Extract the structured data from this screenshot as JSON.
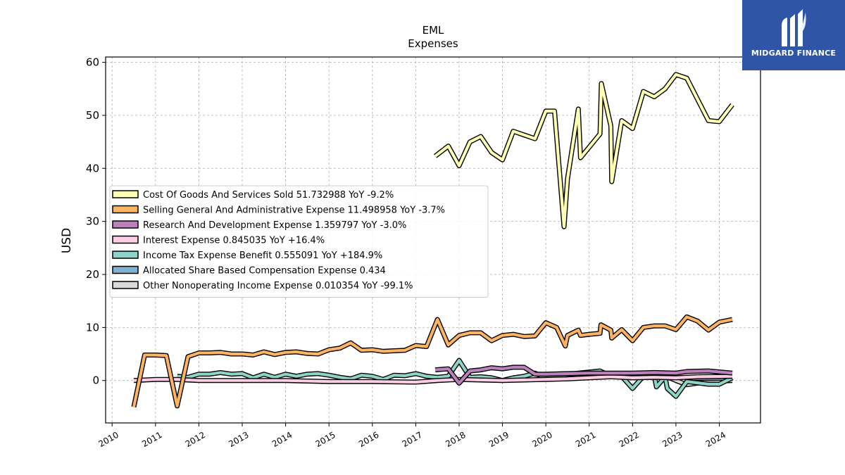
{
  "brand": {
    "name": "MIDGARD FINANCE",
    "bg": "#2f56a6"
  },
  "chart_data": {
    "type": "line",
    "title": "EML",
    "subtitle": "Expenses",
    "ylabel": "USD",
    "xlabel": "",
    "ylim": [
      -8,
      61
    ],
    "xlim": [
      2009.85,
      2024.95
    ],
    "yticks": [
      0,
      10,
      20,
      30,
      40,
      50,
      60
    ],
    "xticks": [
      2010,
      2011,
      2012,
      2013,
      2014,
      2015,
      2016,
      2017,
      2018,
      2019,
      2020,
      2021,
      2022,
      2023,
      2024
    ],
    "grid": true,
    "legend_position": "center-left",
    "series": [
      {
        "name": "Cost Of Goods And Services Sold  51.732988 YoY -9.2%",
        "color": "#ffffb3",
        "points": [
          [
            2017.45,
            42.3
          ],
          [
            2017.75,
            44.2
          ],
          [
            2018.0,
            40.5
          ],
          [
            2018.25,
            45.0
          ],
          [
            2018.5,
            46.0
          ],
          [
            2018.75,
            43.0
          ],
          [
            2019.0,
            41.6
          ],
          [
            2019.25,
            47.0
          ],
          [
            2019.5,
            46.3
          ],
          [
            2019.75,
            45.6
          ],
          [
            2020.0,
            50.8
          ],
          [
            2020.2,
            50.8
          ],
          [
            2020.42,
            29.0
          ],
          [
            2020.5,
            38.0
          ],
          [
            2020.75,
            51.2
          ],
          [
            2020.8,
            42.0
          ],
          [
            2021.25,
            46.5
          ],
          [
            2021.28,
            56.0
          ],
          [
            2021.5,
            48.0
          ],
          [
            2021.52,
            37.5
          ],
          [
            2021.75,
            49.0
          ],
          [
            2022.0,
            47.5
          ],
          [
            2022.25,
            54.5
          ],
          [
            2022.5,
            53.5
          ],
          [
            2022.75,
            55.0
          ],
          [
            2023.0,
            57.7
          ],
          [
            2023.25,
            57.0
          ],
          [
            2023.5,
            53.0
          ],
          [
            2023.75,
            49.0
          ],
          [
            2024.0,
            48.8
          ],
          [
            2024.3,
            52.0
          ]
        ]
      },
      {
        "name": "Selling General And Administrative Expense  11.498958 YoY -3.7%",
        "color": "#fdb462",
        "points": [
          [
            2010.5,
            -5.0
          ],
          [
            2010.75,
            4.8
          ],
          [
            2011.0,
            4.8
          ],
          [
            2011.25,
            4.7
          ],
          [
            2011.5,
            -4.8
          ],
          [
            2011.75,
            4.5
          ],
          [
            2012.0,
            5.2
          ],
          [
            2012.25,
            5.2
          ],
          [
            2012.5,
            5.3
          ],
          [
            2012.75,
            5.0
          ],
          [
            2013.0,
            5.0
          ],
          [
            2013.25,
            4.8
          ],
          [
            2013.5,
            5.4
          ],
          [
            2013.75,
            4.9
          ],
          [
            2014.0,
            5.3
          ],
          [
            2014.25,
            5.4
          ],
          [
            2014.5,
            5.1
          ],
          [
            2014.75,
            5.0
          ],
          [
            2015.0,
            5.8
          ],
          [
            2015.25,
            6.1
          ],
          [
            2015.5,
            7.1
          ],
          [
            2015.75,
            5.7
          ],
          [
            2016.0,
            5.8
          ],
          [
            2016.25,
            5.5
          ],
          [
            2016.5,
            5.6
          ],
          [
            2016.75,
            5.7
          ],
          [
            2017.0,
            6.6
          ],
          [
            2017.25,
            6.4
          ],
          [
            2017.5,
            11.5
          ],
          [
            2017.75,
            6.7
          ],
          [
            2018.0,
            8.5
          ],
          [
            2018.25,
            9.0
          ],
          [
            2018.5,
            9.0
          ],
          [
            2018.75,
            7.5
          ],
          [
            2019.0,
            8.5
          ],
          [
            2019.25,
            8.7
          ],
          [
            2019.5,
            8.3
          ],
          [
            2019.75,
            8.4
          ],
          [
            2020.0,
            10.9
          ],
          [
            2020.25,
            10.0
          ],
          [
            2020.45,
            6.5
          ],
          [
            2020.5,
            8.5
          ],
          [
            2020.75,
            9.5
          ],
          [
            2020.8,
            8.5
          ],
          [
            2021.0,
            8.7
          ],
          [
            2021.25,
            8.9
          ],
          [
            2021.27,
            10.5
          ],
          [
            2021.5,
            9.5
          ],
          [
            2021.52,
            8.0
          ],
          [
            2021.75,
            9.6
          ],
          [
            2022.0,
            7.5
          ],
          [
            2022.25,
            10.0
          ],
          [
            2022.5,
            10.3
          ],
          [
            2022.75,
            10.3
          ],
          [
            2023.0,
            9.6
          ],
          [
            2023.25,
            12.0
          ],
          [
            2023.5,
            11.2
          ],
          [
            2023.75,
            9.5
          ],
          [
            2024.0,
            11.0
          ],
          [
            2024.3,
            11.5
          ]
        ]
      },
      {
        "name": "Research And Development Expense  1.359797 YoY -3.0%",
        "color": "#bc80bd",
        "points": [
          [
            2017.45,
            2.0
          ],
          [
            2017.75,
            2.2
          ],
          [
            2018.0,
            -0.5
          ],
          [
            2018.25,
            1.8
          ],
          [
            2018.5,
            2.0
          ],
          [
            2018.75,
            2.4
          ],
          [
            2019.0,
            2.2
          ],
          [
            2019.25,
            2.5
          ],
          [
            2019.5,
            2.5
          ],
          [
            2019.75,
            1.2
          ],
          [
            2020.0,
            1.2
          ],
          [
            2020.5,
            1.3
          ],
          [
            2021.0,
            1.4
          ],
          [
            2021.5,
            1.4
          ],
          [
            2022.0,
            1.4
          ],
          [
            2022.5,
            1.5
          ],
          [
            2023.0,
            1.4
          ],
          [
            2023.25,
            1.7
          ],
          [
            2023.75,
            1.8
          ],
          [
            2024.3,
            1.4
          ]
        ]
      },
      {
        "name": "Interest Expense  0.845035 YoY +16.4%",
        "color": "#fccde5",
        "points": [
          [
            2010.5,
            0.0
          ],
          [
            2011.0,
            0.2
          ],
          [
            2011.5,
            0.2
          ],
          [
            2012.0,
            0.0
          ],
          [
            2013.0,
            0.0
          ],
          [
            2014.0,
            0.0
          ],
          [
            2015.0,
            -0.2
          ],
          [
            2016.0,
            -0.2
          ],
          [
            2017.0,
            -0.3
          ],
          [
            2017.5,
            0.0
          ],
          [
            2018.0,
            0.2
          ],
          [
            2019.0,
            0.0
          ],
          [
            2020.0,
            0.2
          ],
          [
            2020.5,
            0.3
          ],
          [
            2021.0,
            0.5
          ],
          [
            2021.5,
            0.7
          ],
          [
            2022.0,
            0.5
          ],
          [
            2022.5,
            0.6
          ],
          [
            2023.0,
            0.5
          ],
          [
            2023.5,
            0.7
          ],
          [
            2024.3,
            0.8
          ]
        ]
      },
      {
        "name": "Income Tax Expense Benefit  0.555091 YoY +184.9%",
        "color": "#8dd3c7",
        "points": [
          [
            2011.5,
            0.8
          ],
          [
            2011.75,
            0.6
          ],
          [
            2012.0,
            1.2
          ],
          [
            2012.25,
            1.2
          ],
          [
            2012.5,
            1.5
          ],
          [
            2012.75,
            1.2
          ],
          [
            2013.0,
            1.3
          ],
          [
            2013.25,
            0.5
          ],
          [
            2013.5,
            1.2
          ],
          [
            2013.75,
            0.6
          ],
          [
            2014.0,
            1.2
          ],
          [
            2014.25,
            0.8
          ],
          [
            2014.5,
            1.2
          ],
          [
            2014.75,
            1.3
          ],
          [
            2015.0,
            1.0
          ],
          [
            2015.25,
            0.6
          ],
          [
            2015.5,
            0.3
          ],
          [
            2015.75,
            1.0
          ],
          [
            2016.0,
            0.8
          ],
          [
            2016.25,
            0.2
          ],
          [
            2016.5,
            1.0
          ],
          [
            2016.75,
            0.9
          ],
          [
            2017.0,
            1.3
          ],
          [
            2017.25,
            0.8
          ],
          [
            2017.5,
            0.6
          ],
          [
            2017.75,
            0.8
          ],
          [
            2018.0,
            3.8
          ],
          [
            2018.25,
            0.6
          ],
          [
            2018.5,
            0.7
          ],
          [
            2018.75,
            0.5
          ],
          [
            2019.0,
            0.0
          ],
          [
            2019.25,
            0.5
          ],
          [
            2019.5,
            0.8
          ],
          [
            2019.75,
            1.4
          ],
          [
            2020.0,
            0.4
          ],
          [
            2020.25,
            0.8
          ],
          [
            2020.5,
            1.1
          ],
          [
            2020.75,
            1.4
          ],
          [
            2021.0,
            1.6
          ],
          [
            2021.25,
            1.8
          ],
          [
            2021.5,
            0.8
          ],
          [
            2021.75,
            0.8
          ],
          [
            2022.0,
            -1.5
          ],
          [
            2022.25,
            0.8
          ],
          [
            2022.5,
            1.0
          ],
          [
            2022.55,
            -1.2
          ],
          [
            2022.75,
            0.7
          ],
          [
            2022.8,
            -1.5
          ],
          [
            2023.0,
            -3.0
          ],
          [
            2023.25,
            -0.2
          ],
          [
            2023.75,
            -0.7
          ],
          [
            2024.0,
            -0.7
          ],
          [
            2024.3,
            0.5
          ]
        ]
      },
      {
        "name": "Allocated Share Based Compensation Expense  0.434",
        "color": "#80b1d3",
        "points": [
          [
            2023.25,
            0.4
          ],
          [
            2023.75,
            0.4
          ],
          [
            2024.3,
            0.43
          ]
        ]
      },
      {
        "name": "Other Nonoperating Income Expense  0.010354 YoY -99.1%",
        "color": "#d9d9d9",
        "points": [
          [
            2022.65,
            1.2
          ],
          [
            2023.0,
            0.0
          ],
          [
            2023.25,
            -0.8
          ],
          [
            2023.75,
            -0.2
          ],
          [
            2024.3,
            0.0
          ]
        ]
      }
    ]
  }
}
